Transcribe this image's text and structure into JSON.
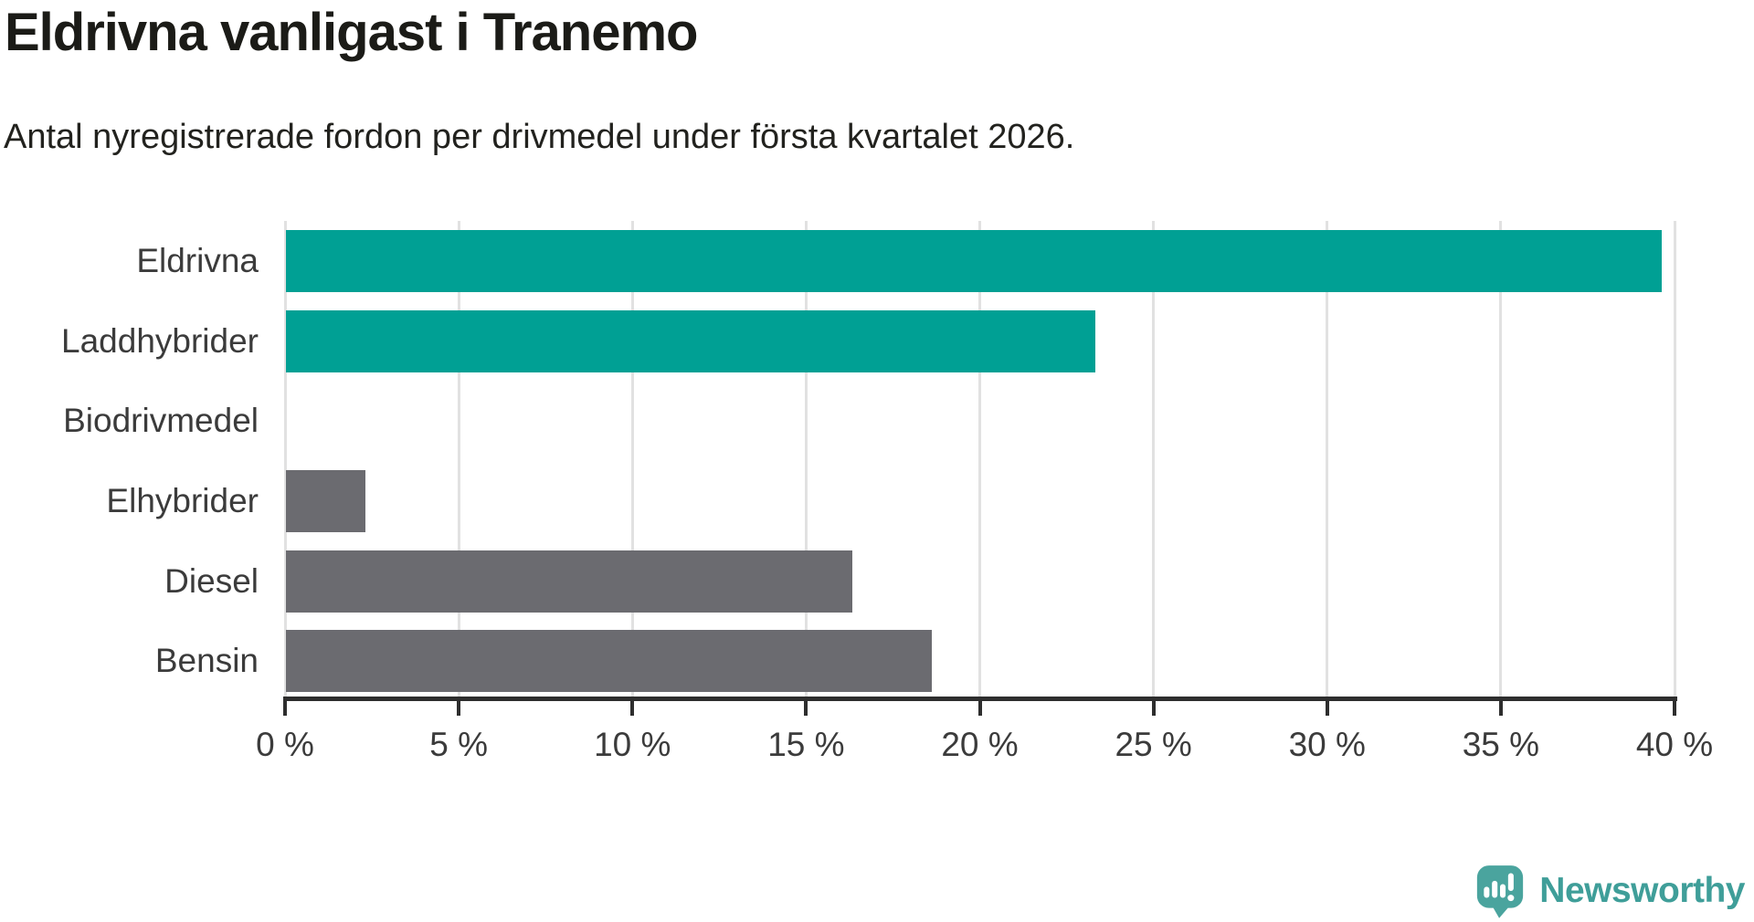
{
  "header": {
    "title": "Eldrivna vanligast i Tranemo",
    "subtitle": "Antal nyregistrerade fordon per drivmedel under första kvartalet 2026."
  },
  "chart_data": {
    "type": "bar",
    "orientation": "horizontal",
    "title": "Eldrivna vanligast i Tranemo",
    "categories": [
      "Eldrivna",
      "Laddhybrider",
      "Biodrivmedel",
      "Elhybrider",
      "Diesel",
      "Bensin"
    ],
    "values": [
      39.6,
      23.3,
      0,
      2.3,
      16.3,
      18.6
    ],
    "unit": "%",
    "bar_colors": [
      "#00A094",
      "#00A094",
      "#6B6B70",
      "#6B6B70",
      "#6B6B70",
      "#6B6B70"
    ],
    "highlight_color": "#00A094",
    "default_color": "#6B6B70",
    "xlim": [
      0,
      40
    ],
    "x_ticks": [
      {
        "value": 0,
        "label": "0 %"
      },
      {
        "value": 5,
        "label": "5 %"
      },
      {
        "value": 10,
        "label": "10 %"
      },
      {
        "value": 15,
        "label": "15 %"
      },
      {
        "value": 20,
        "label": "20 %"
      },
      {
        "value": 25,
        "label": "25 %"
      },
      {
        "value": 30,
        "label": "30 %"
      },
      {
        "value": 35,
        "label": "35 %"
      },
      {
        "value": 40,
        "label": "40 %"
      }
    ],
    "grid": "vertical",
    "legend": "none"
  },
  "branding": {
    "logo_text": "Newsworthy",
    "logo_icon": "newsworthy-speech-bubble-bar-chart-icon",
    "logo_color": "#4AA49E"
  },
  "colors": {
    "background": "#FFFFFF",
    "gridline": "#E1E1E1",
    "axis": "#2E2E2E",
    "label": "#3B3B3B",
    "title": "#1B1B17"
  }
}
